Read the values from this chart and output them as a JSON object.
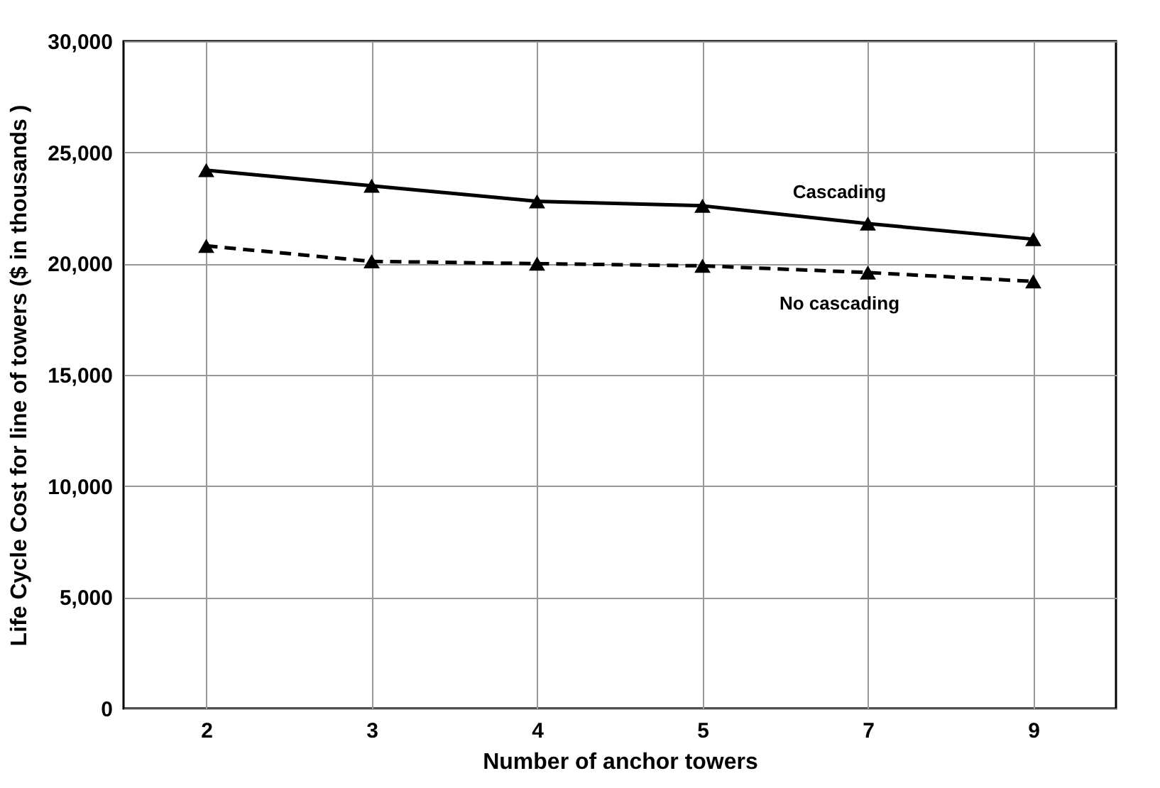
{
  "chart_data": {
    "type": "line",
    "xlabel": "Number of anchor towers",
    "ylabel": "Life Cycle Cost for line of towers ($ in thousands )",
    "categories": [
      "2",
      "3",
      "4",
      "5",
      "7",
      "9"
    ],
    "series": [
      {
        "name": "Cascading",
        "color": "#000000",
        "line_style": "solid",
        "values": [
          24200,
          23500,
          22800,
          22600,
          21800,
          21100
        ]
      },
      {
        "name": "No cascading",
        "color": "#000000",
        "line_style": "dashed",
        "values": [
          20800,
          20100,
          20000,
          19900,
          19600,
          19200
        ]
      }
    ],
    "ylim": [
      0,
      30000
    ],
    "yticks": [
      0,
      {
        "value": 5000,
        "label": "5,000"
      },
      {
        "value": 10000,
        "label": "10,000"
      },
      {
        "value": 15000,
        "label": "15,000"
      },
      {
        "value": 20000,
        "label": "20,000"
      },
      {
        "value": 25000,
        "label": "25,000"
      },
      {
        "value": 30000,
        "label": "30,000"
      }
    ],
    "grid": true,
    "marker": "triangle"
  }
}
